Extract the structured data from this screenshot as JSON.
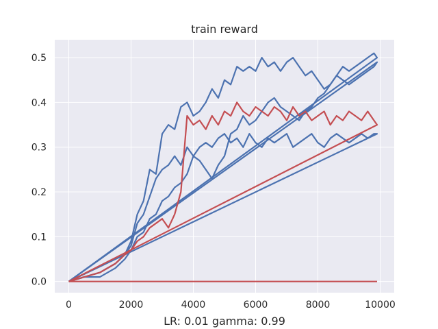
{
  "chart_data": {
    "type": "line",
    "title": "train reward",
    "xlabel": "LR: 0.01 gamma: 0.99",
    "ylabel": "",
    "xlim": [
      -450,
      10450
    ],
    "ylim": [
      -0.025,
      0.54
    ],
    "xticks": [
      0,
      2000,
      4000,
      6000,
      8000,
      10000
    ],
    "xtick_labels": [
      "0",
      "2000",
      "4000",
      "6000",
      "8000",
      "10000"
    ],
    "yticks": [
      0.0,
      0.1,
      0.2,
      0.3,
      0.4,
      0.5
    ],
    "ytick_labels": [
      "0.0",
      "0.1",
      "0.2",
      "0.3",
      "0.4",
      "0.5"
    ],
    "grid": true,
    "legend": "none",
    "colors": {
      "blue": "#4c72b0",
      "red": "#c44e52",
      "background": "#eaeaf2",
      "grid": "#ffffff"
    },
    "series": [
      {
        "color": "blue",
        "x": [
          0,
          500,
          1000,
          1500,
          1800,
          2000,
          2200,
          2400,
          2600,
          2800,
          3000,
          3200,
          3400,
          3600,
          3800,
          4000,
          4200,
          4400,
          4600,
          4800,
          5000,
          5200,
          5400,
          5600,
          5800,
          6000,
          6200,
          6400,
          6600,
          6800,
          7000,
          7200,
          7400,
          7600,
          7800,
          8000,
          8200,
          8400,
          8600,
          8800,
          9000,
          9200,
          9400,
          9600,
          9800,
          9900,
          0
        ],
        "y": [
          0.0,
          0.01,
          0.02,
          0.04,
          0.06,
          0.09,
          0.15,
          0.18,
          0.25,
          0.24,
          0.33,
          0.35,
          0.34,
          0.39,
          0.4,
          0.37,
          0.38,
          0.4,
          0.43,
          0.41,
          0.45,
          0.44,
          0.48,
          0.47,
          0.48,
          0.47,
          0.5,
          0.48,
          0.49,
          0.47,
          0.49,
          0.5,
          0.48,
          0.46,
          0.47,
          0.45,
          0.43,
          0.44,
          0.46,
          0.48,
          0.47,
          0.48,
          0.49,
          0.5,
          0.51,
          0.5,
          0.0
        ]
      },
      {
        "color": "blue",
        "x": [
          0,
          500,
          1000,
          1500,
          1800,
          2000,
          2200,
          2400,
          2600,
          2800,
          3000,
          3200,
          3400,
          3600,
          3800,
          4000,
          4200,
          4400,
          4600,
          4800,
          5000,
          5200,
          5400,
          5600,
          5800,
          6000,
          6200,
          6400,
          6600,
          6800,
          7000,
          7200,
          7400,
          7600,
          7800,
          8000,
          8200,
          8400,
          8600,
          8800,
          9000,
          9200,
          9400,
          9600,
          9800,
          9900,
          0
        ],
        "y": [
          0.0,
          0.01,
          0.02,
          0.04,
          0.06,
          0.08,
          0.13,
          0.15,
          0.19,
          0.23,
          0.25,
          0.26,
          0.28,
          0.26,
          0.3,
          0.28,
          0.27,
          0.25,
          0.23,
          0.26,
          0.28,
          0.33,
          0.34,
          0.37,
          0.35,
          0.36,
          0.38,
          0.4,
          0.41,
          0.39,
          0.38,
          0.37,
          0.36,
          0.38,
          0.39,
          0.41,
          0.42,
          0.44,
          0.46,
          0.45,
          0.44,
          0.45,
          0.46,
          0.47,
          0.48,
          0.49,
          0.0
        ]
      },
      {
        "color": "blue",
        "x": [
          0,
          500,
          1000,
          1500,
          1800,
          2000,
          2200,
          2400,
          2600,
          2800,
          3000,
          3200,
          3400,
          3600,
          3800,
          4000,
          4200,
          4400,
          4600,
          4800,
          5000,
          5200,
          5400,
          5600,
          5800,
          6000,
          6200,
          6400,
          6600,
          6800,
          7000,
          7200,
          7400,
          7600,
          7800,
          8000,
          8200,
          8400,
          8600,
          8800,
          9000,
          9200,
          9400,
          9600,
          9800,
          9900,
          0
        ],
        "y": [
          0.0,
          0.01,
          0.01,
          0.03,
          0.05,
          0.07,
          0.1,
          0.11,
          0.14,
          0.15,
          0.18,
          0.19,
          0.21,
          0.22,
          0.24,
          0.28,
          0.3,
          0.31,
          0.3,
          0.32,
          0.33,
          0.31,
          0.32,
          0.3,
          0.33,
          0.31,
          0.3,
          0.32,
          0.31,
          0.32,
          0.33,
          0.3,
          0.31,
          0.32,
          0.33,
          0.31,
          0.3,
          0.32,
          0.33,
          0.32,
          0.31,
          0.32,
          0.33,
          0.32,
          0.33,
          0.33,
          0.0
        ]
      },
      {
        "color": "red",
        "x": [
          0,
          500,
          1000,
          1500,
          1800,
          2000,
          2200,
          2400,
          2600,
          2800,
          3000,
          3200,
          3400,
          3600,
          3800,
          4000,
          4200,
          4400,
          4600,
          4800,
          5000,
          5200,
          5400,
          5600,
          5800,
          6000,
          6200,
          6400,
          6600,
          6800,
          7000,
          7200,
          7400,
          7600,
          7800,
          8000,
          8200,
          8400,
          8600,
          8800,
          9000,
          9200,
          9400,
          9600,
          9800,
          9900,
          0
        ],
        "y": [
          0.0,
          0.01,
          0.02,
          0.04,
          0.06,
          0.07,
          0.09,
          0.1,
          0.12,
          0.13,
          0.14,
          0.12,
          0.15,
          0.2,
          0.37,
          0.35,
          0.36,
          0.34,
          0.37,
          0.35,
          0.38,
          0.37,
          0.4,
          0.38,
          0.37,
          0.39,
          0.38,
          0.37,
          0.39,
          0.38,
          0.36,
          0.39,
          0.37,
          0.38,
          0.36,
          0.37,
          0.38,
          0.35,
          0.37,
          0.36,
          0.38,
          0.37,
          0.36,
          0.38,
          0.36,
          0.35,
          0.0
        ]
      },
      {
        "color": "red",
        "x": [
          0,
          500,
          1000,
          2000,
          4000,
          6000,
          8000,
          9900
        ],
        "y": [
          0.0,
          0.0,
          0.0,
          0.0,
          0.0,
          0.0,
          0.0,
          0.0
        ]
      }
    ]
  }
}
